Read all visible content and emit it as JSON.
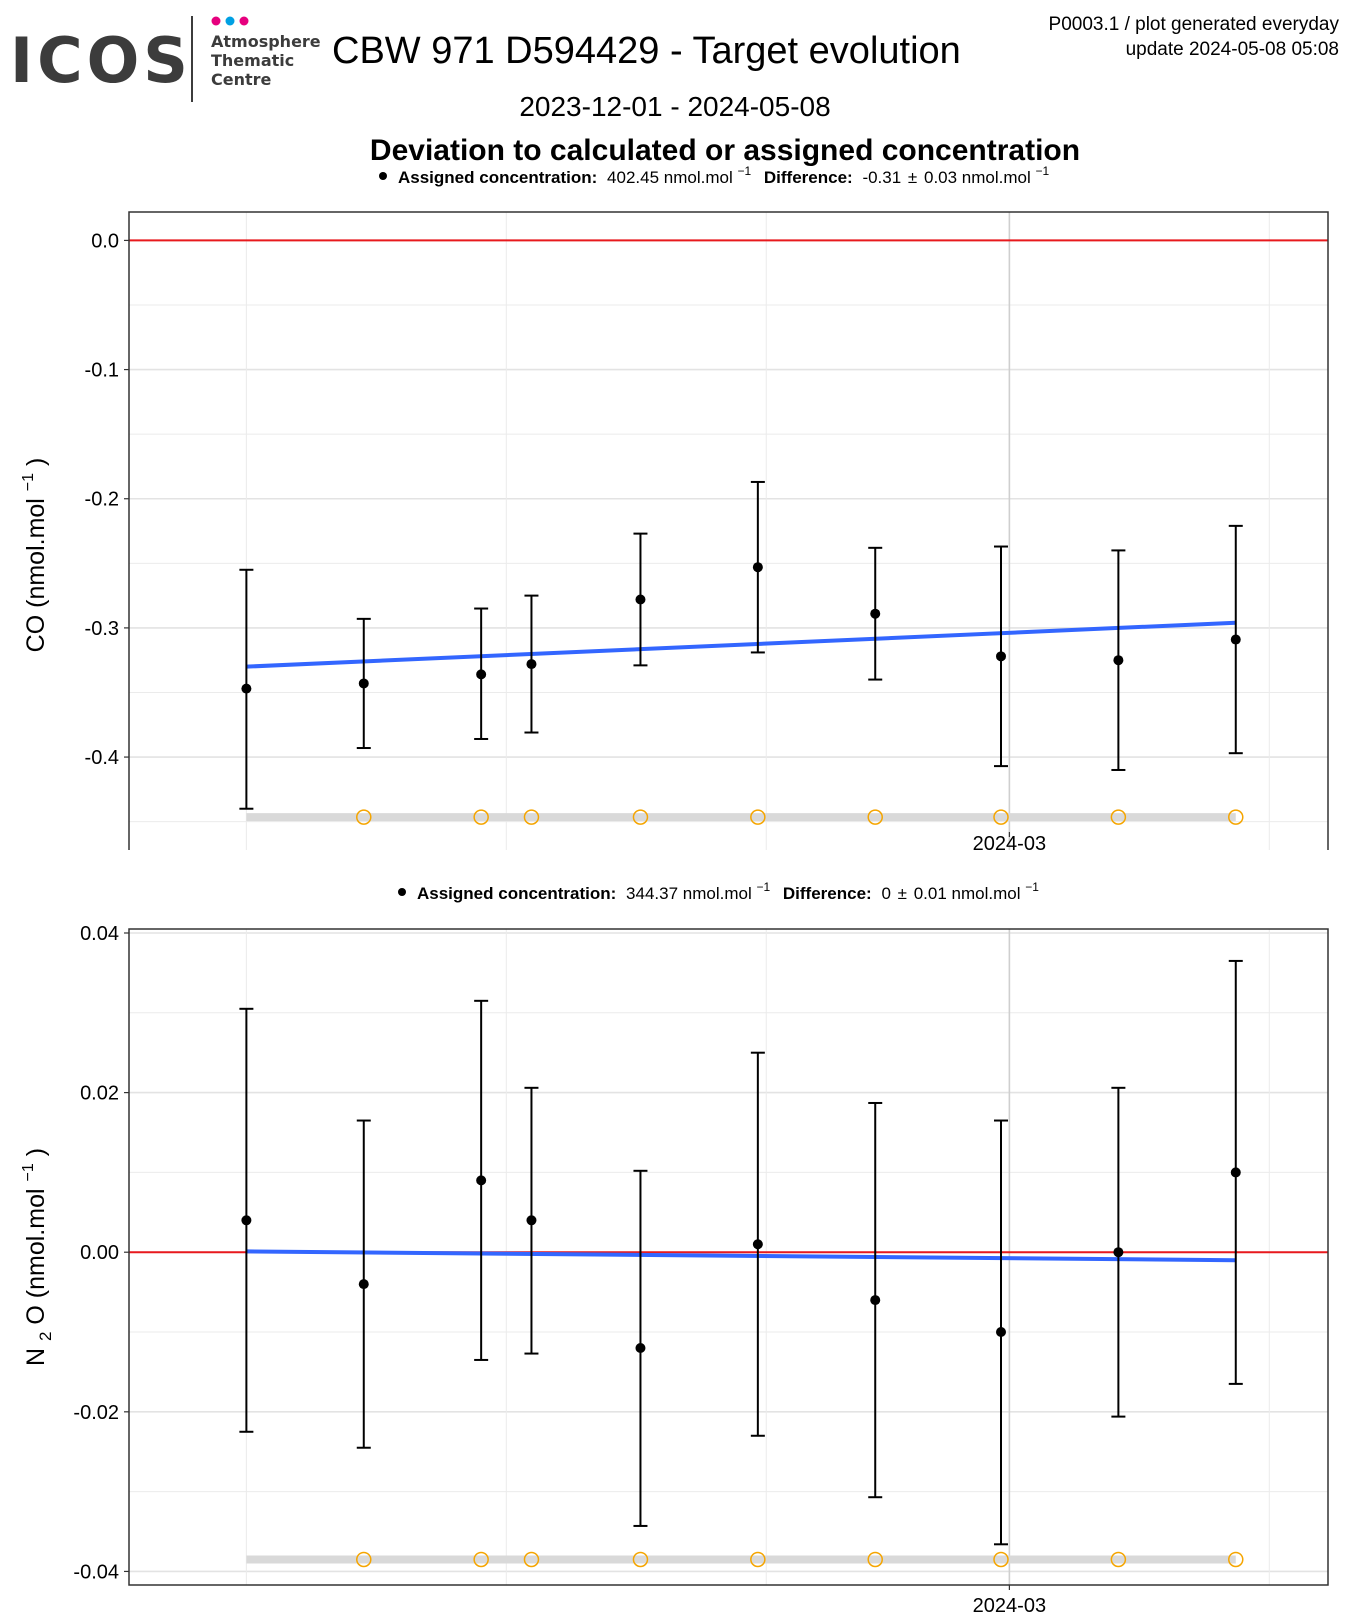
{
  "logo": {
    "wordmark": "ICOS",
    "dot_colors": [
      "#e6007e",
      "#00a0e3",
      "#e6007e"
    ],
    "lines": [
      "Atmosphere",
      "Thematic",
      "Centre"
    ]
  },
  "header": {
    "title": "CBW 971 D594429 - Target evolution",
    "period": "2023-12-01 - 2024-05-08",
    "meta_line1": "P0003.1 / plot generated everyday",
    "meta_line2": "update  2024-05-08 05:08"
  },
  "figure_title": "Deviation to calculated or assigned concentration",
  "panels": [
    {
      "legend_bold_1": "Assigned concentration:",
      "legend_value_1": "402.45 nmol.mol",
      "legend_sup_1": "−1",
      "legend_bold_2": "Difference:",
      "legend_value_2": "-0.31",
      "legend_pm": "±",
      "legend_value_2b": "0.03 nmol.mol",
      "legend_sup_2": "−1",
      "ylabel_main": "CO (nmol.mol",
      "ylabel_sup": "−1",
      "ylabel_close": ")",
      "x_tick": "2024-03",
      "y_ticks": [
        "0.0",
        "-0.1",
        "-0.2",
        "-0.3",
        "-0.4"
      ]
    },
    {
      "legend_bold_1": "Assigned concentration:",
      "legend_value_1": "344.37 nmol.mol",
      "legend_sup_1": "−1",
      "legend_bold_2": "Difference:",
      "legend_value_2": "0",
      "legend_pm": "±",
      "legend_value_2b": "0.01 nmol.mol",
      "legend_sup_2": "−1",
      "ylabel_main": "N",
      "ylabel_sub": "2",
      "ylabel_rest": "O (nmol.mol",
      "ylabel_sup": "−1",
      "ylabel_close": ")",
      "x_tick": "2024-03",
      "y_ticks": [
        "0.04",
        "0.02",
        "0.00",
        "-0.02",
        "-0.04"
      ]
    }
  ],
  "colors": {
    "points": "#000000",
    "trend": "#3366ff",
    "zero_line": "#e8191d",
    "flag_marker": "#f5a500",
    "flag_band": "#d9d9d9",
    "grid": "#ebebeb"
  },
  "chart_data": [
    {
      "type": "scatter",
      "ylabel": "CO (nmol.mol⁻¹)",
      "x_axis": "date",
      "x_range": [
        "2023-12-01",
        "2024-05-08"
      ],
      "x_tick_labels": [
        "2024-03"
      ],
      "ylim": [
        -0.4735,
        0.022
      ],
      "y_ticks": [
        0.0,
        -0.1,
        -0.2,
        -0.3,
        -0.4
      ],
      "grid": true,
      "x": [
        "2023-12-01",
        "2023-12-15",
        "2023-12-29",
        "2024-01-04",
        "2024-01-17",
        "2024-01-31",
        "2024-02-14",
        "2024-02-29",
        "2024-03-14",
        "2024-03-28"
      ],
      "y": [
        -0.347,
        -0.343,
        -0.336,
        -0.328,
        -0.278,
        -0.253,
        -0.289,
        -0.322,
        -0.325,
        -0.309
      ],
      "error_low": [
        -0.44,
        -0.393,
        -0.386,
        -0.381,
        -0.329,
        -0.319,
        -0.34,
        -0.407,
        -0.41,
        -0.397
      ],
      "error_high": [
        -0.255,
        -0.293,
        -0.285,
        -0.275,
        -0.227,
        -0.187,
        -0.238,
        -0.237,
        -0.24,
        -0.221
      ],
      "trend": {
        "x": [
          "2023-12-01",
          "2024-03-28"
        ],
        "y": [
          -0.33,
          -0.296
        ]
      },
      "reference_line": 0.0,
      "flag_band_y": -0.4465,
      "flag_markers_x": [
        "2023-12-15",
        "2023-12-29",
        "2024-01-04",
        "2024-01-17",
        "2024-01-31",
        "2024-02-14",
        "2024-02-29",
        "2024-03-14",
        "2024-03-28"
      ]
    },
    {
      "type": "scatter",
      "ylabel": "N₂O (nmol.mol⁻¹)",
      "x_axis": "date",
      "x_range": [
        "2023-12-01",
        "2024-05-08"
      ],
      "x_tick_labels": [
        "2024-03"
      ],
      "ylim": [
        -0.0417,
        0.0405
      ],
      "y_ticks": [
        0.04,
        0.02,
        0.0,
        -0.02,
        -0.04
      ],
      "grid": true,
      "x": [
        "2023-12-01",
        "2023-12-15",
        "2023-12-29",
        "2024-01-04",
        "2024-01-17",
        "2024-01-31",
        "2024-02-14",
        "2024-02-29",
        "2024-03-14",
        "2024-03-28"
      ],
      "y": [
        0.004,
        -0.004,
        0.009,
        0.004,
        -0.012,
        0.001,
        -0.006,
        -0.01,
        0.0,
        0.01
      ],
      "error_low": [
        -0.0225,
        -0.0245,
        -0.0135,
        -0.0127,
        -0.0343,
        -0.023,
        -0.0307,
        -0.0366,
        -0.0206,
        -0.0165
      ],
      "error_high": [
        0.0305,
        0.0165,
        0.0315,
        0.0206,
        0.0102,
        0.025,
        0.0187,
        0.0165,
        0.0206,
        0.0365
      ],
      "trend": {
        "x": [
          "2023-12-01",
          "2024-03-28"
        ],
        "y": [
          0.0001,
          -0.001
        ]
      },
      "reference_line": 0.0,
      "flag_band_y": -0.0385,
      "flag_markers_x": [
        "2023-12-15",
        "2023-12-29",
        "2024-01-04",
        "2024-01-17",
        "2024-01-31",
        "2024-02-14",
        "2024-02-29",
        "2024-03-14",
        "2024-03-28"
      ]
    }
  ]
}
